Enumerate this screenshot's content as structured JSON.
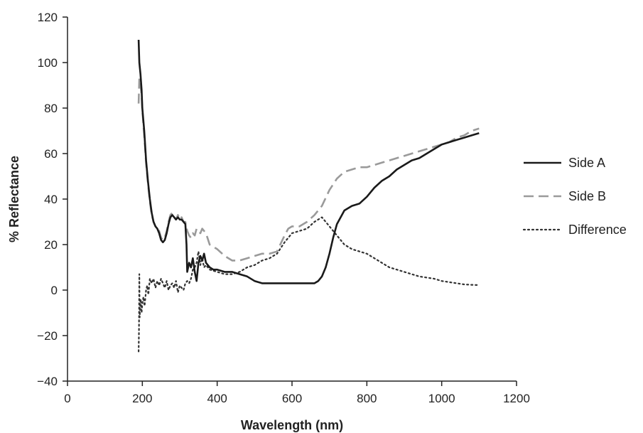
{
  "chart_data": {
    "type": "line",
    "title": "",
    "xlabel": "Wavelength (nm)",
    "ylabel": "% Reflectance",
    "xlim": [
      0,
      1200
    ],
    "ylim": [
      -40,
      120
    ],
    "xticks": [
      0,
      200,
      400,
      600,
      800,
      1000,
      1200
    ],
    "yticks": [
      -40,
      -20,
      0,
      20,
      40,
      60,
      80,
      100,
      120
    ],
    "xtick_labels": [
      "0",
      "200",
      "400",
      "600",
      "800",
      "1000",
      "1200"
    ],
    "ytick_labels": [
      "−40",
      "−20",
      "0",
      "20",
      "40",
      "60",
      "80",
      "100",
      "120"
    ],
    "grid": false,
    "legend_position": "right",
    "series": [
      {
        "name": "Side A",
        "color": "#1a1a1a",
        "dash": "solid",
        "x": [
          190,
          192,
          195,
          198,
          200,
          205,
          210,
          215,
          220,
          225,
          230,
          235,
          240,
          245,
          250,
          255,
          260,
          265,
          270,
          275,
          280,
          285,
          290,
          295,
          300,
          305,
          310,
          315,
          318,
          320,
          325,
          330,
          335,
          340,
          345,
          350,
          355,
          360,
          365,
          370,
          380,
          390,
          400,
          420,
          440,
          460,
          480,
          500,
          520,
          540,
          560,
          580,
          600,
          620,
          640,
          660,
          670,
          680,
          690,
          700,
          710,
          720,
          740,
          760,
          780,
          800,
          820,
          840,
          860,
          880,
          900,
          920,
          940,
          960,
          980,
          1000,
          1020,
          1040,
          1060,
          1080,
          1100
        ],
        "y": [
          110,
          100,
          95,
          88,
          80,
          70,
          57,
          48,
          40,
          34,
          30,
          28,
          27,
          25,
          22,
          21,
          22,
          25,
          29,
          32,
          33,
          32,
          31,
          32,
          31,
          31,
          30,
          29,
          20,
          8,
          12,
          10,
          14,
          8,
          4,
          12,
          15,
          13,
          16,
          12,
          10,
          9,
          9,
          8,
          8,
          7,
          6,
          4,
          3,
          3,
          3,
          3,
          3,
          3,
          3,
          3,
          4,
          6,
          10,
          16,
          23,
          29,
          35,
          37,
          38,
          41,
          45,
          48,
          50,
          53,
          55,
          57,
          58,
          60,
          62,
          64,
          65,
          66,
          67,
          68,
          69
        ]
      },
      {
        "name": "Side B",
        "color": "#9a9a9a",
        "dash": "dashed",
        "x": [
          190,
          192,
          195,
          198,
          200,
          205,
          210,
          215,
          220,
          225,
          230,
          235,
          240,
          245,
          250,
          255,
          260,
          265,
          270,
          275,
          280,
          285,
          290,
          295,
          300,
          305,
          310,
          315,
          320,
          325,
          330,
          335,
          340,
          345,
          350,
          355,
          360,
          365,
          370,
          380,
          390,
          400,
          420,
          440,
          460,
          480,
          500,
          520,
          540,
          560,
          580,
          590,
          600,
          620,
          640,
          660,
          680,
          700,
          720,
          740,
          760,
          780,
          800,
          820,
          840,
          860,
          880,
          900,
          920,
          940,
          960,
          980,
          1000,
          1020,
          1040,
          1060,
          1080,
          1100
        ],
        "y": [
          82,
          93,
          90,
          86,
          79,
          68,
          56,
          47,
          39,
          33,
          30,
          28,
          27,
          26,
          23,
          22,
          23,
          26,
          30,
          33,
          34,
          32,
          31,
          33,
          31,
          32,
          30,
          30,
          26,
          24,
          23,
          25,
          24,
          27,
          26,
          25,
          27,
          26,
          25,
          20,
          19,
          18,
          15,
          13,
          13,
          14,
          15,
          16,
          16,
          17,
          24,
          27,
          28,
          28,
          30,
          33,
          37,
          44,
          49,
          52,
          53,
          54,
          54,
          55,
          56,
          57,
          58,
          59,
          60,
          61,
          62,
          63,
          64,
          65,
          67,
          68,
          70,
          71
        ]
      },
      {
        "name": "Difference",
        "color": "#333333",
        "dash": "dotted",
        "x": [
          190,
          191,
          192,
          193,
          194,
          195,
          196,
          198,
          200,
          203,
          206,
          210,
          213,
          216,
          220,
          225,
          230,
          235,
          240,
          245,
          250,
          255,
          260,
          265,
          270,
          275,
          280,
          285,
          290,
          295,
          300,
          305,
          310,
          315,
          320,
          325,
          330,
          335,
          340,
          345,
          350,
          355,
          360,
          365,
          370,
          380,
          400,
          420,
          440,
          460,
          480,
          500,
          520,
          540,
          560,
          580,
          600,
          620,
          640,
          660,
          680,
          700,
          720,
          740,
          760,
          780,
          800,
          820,
          840,
          860,
          880,
          900,
          920,
          940,
          960,
          980,
          1000,
          1020,
          1040,
          1060,
          1080,
          1100
        ],
        "y": [
          -27,
          -18,
          7,
          -12,
          -8,
          -5,
          -4,
          -10,
          -6,
          -3,
          -7,
          0,
          2,
          -2,
          5,
          3,
          5,
          1,
          4,
          2,
          5,
          3,
          1,
          4,
          0,
          2,
          3,
          1,
          4,
          -1,
          2,
          1,
          0,
          3,
          4,
          3,
          5,
          9,
          10,
          12,
          17,
          11,
          14,
          10,
          11,
          9,
          8,
          7,
          7,
          8,
          10,
          11,
          13,
          14,
          16,
          21,
          25,
          26,
          27,
          30,
          32,
          28,
          24,
          20,
          18,
          17,
          16,
          14,
          12,
          10,
          9,
          8,
          7,
          6,
          5.5,
          5,
          4,
          3.5,
          3,
          2.5,
          2.3,
          2.2
        ]
      }
    ]
  }
}
